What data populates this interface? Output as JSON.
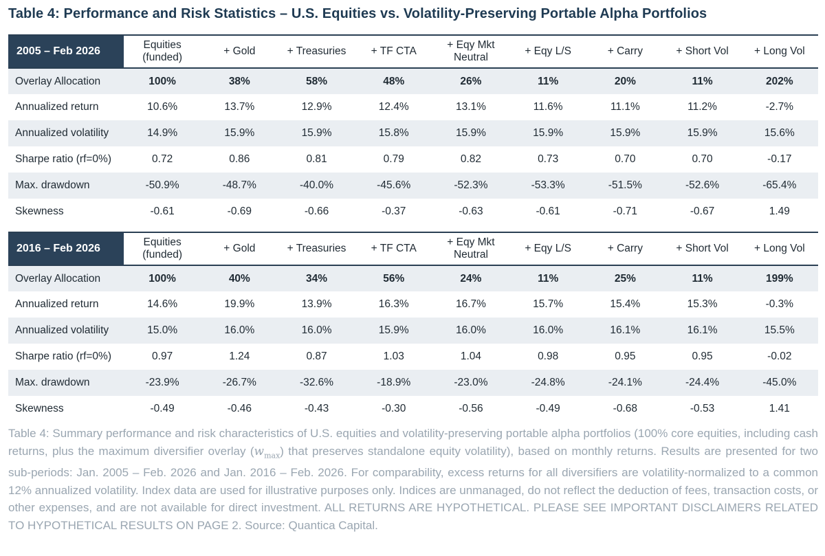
{
  "title": "Table 4: Performance and Risk Statistics – U.S. Equities vs. Volatility-Preserving Portable Alpha Portfolios",
  "columns": [
    {
      "line1": "Equities",
      "line2": "(funded)"
    },
    {
      "line1": "+ Gold",
      "line2": ""
    },
    {
      "line1": "+ Treasuries",
      "line2": ""
    },
    {
      "line1": "+ TF CTA",
      "line2": ""
    },
    {
      "line1": "+ Eqy Mkt",
      "line2": "Neutral"
    },
    {
      "line1": "+ Eqy L/S",
      "line2": ""
    },
    {
      "line1": "+ Carry",
      "line2": ""
    },
    {
      "line1": "+ Short Vol",
      "line2": ""
    },
    {
      "line1": "+ Long Vol",
      "line2": ""
    }
  ],
  "tables": [
    {
      "period": "2005 – Feb 2026",
      "rows": [
        {
          "label": "Overlay Allocation",
          "values": [
            "100%",
            "38%",
            "58%",
            "48%",
            "26%",
            "11%",
            "20%",
            "11%",
            "202%"
          ]
        },
        {
          "label": "Annualized return",
          "values": [
            "10.6%",
            "13.7%",
            "12.9%",
            "12.4%",
            "13.1%",
            "11.6%",
            "11.1%",
            "11.2%",
            "-2.7%"
          ]
        },
        {
          "label": "Annualized volatility",
          "values": [
            "14.9%",
            "15.9%",
            "15.9%",
            "15.8%",
            "15.9%",
            "15.9%",
            "15.9%",
            "15.9%",
            "15.6%"
          ]
        },
        {
          "label": "Sharpe ratio (rf=0%)",
          "values": [
            "0.72",
            "0.86",
            "0.81",
            "0.79",
            "0.82",
            "0.73",
            "0.70",
            "0.70",
            "-0.17"
          ]
        },
        {
          "label": "Max. drawdown",
          "values": [
            "-50.9%",
            "-48.7%",
            "-40.0%",
            "-45.6%",
            "-52.3%",
            "-53.3%",
            "-51.5%",
            "-52.6%",
            "-65.4%"
          ]
        },
        {
          "label": "Skewness",
          "values": [
            "-0.61",
            "-0.69",
            "-0.66",
            "-0.37",
            "-0.63",
            "-0.61",
            "-0.71",
            "-0.67",
            "1.49"
          ]
        }
      ]
    },
    {
      "period": "2016 – Feb 2026",
      "rows": [
        {
          "label": "Overlay Allocation",
          "values": [
            "100%",
            "40%",
            "34%",
            "56%",
            "24%",
            "11%",
            "25%",
            "11%",
            "199%"
          ]
        },
        {
          "label": "Annualized return",
          "values": [
            "14.6%",
            "19.9%",
            "13.9%",
            "16.3%",
            "16.7%",
            "15.7%",
            "15.4%",
            "15.3%",
            "-0.3%"
          ]
        },
        {
          "label": "Annualized volatility",
          "values": [
            "15.0%",
            "16.0%",
            "16.0%",
            "15.9%",
            "16.0%",
            "16.0%",
            "16.1%",
            "16.1%",
            "15.5%"
          ]
        },
        {
          "label": "Sharpe ratio (rf=0%)",
          "values": [
            "0.97",
            "1.24",
            "0.87",
            "1.03",
            "1.04",
            "0.98",
            "0.95",
            "0.95",
            "-0.02"
          ]
        },
        {
          "label": "Max. drawdown",
          "values": [
            "-23.9%",
            "-26.7%",
            "-32.6%",
            "-18.9%",
            "-23.0%",
            "-24.8%",
            "-24.1%",
            "-24.4%",
            "-45.0%"
          ]
        },
        {
          "label": "Skewness",
          "values": [
            "-0.49",
            "-0.46",
            "-0.43",
            "-0.30",
            "-0.56",
            "-0.49",
            "-0.68",
            "-0.53",
            "1.41"
          ]
        }
      ]
    }
  ],
  "caption": {
    "part1": "Table 4: Summary performance and risk characteristics of U.S. equities and volatility-preserving portable alpha portfolios (100% core equities, including cash returns, plus the maximum diversifier overlay (",
    "math_var": "w",
    "math_sub": "max",
    "part2": ") that preserves standalone equity volatility), based on monthly returns. Results are presented for two sub-periods: Jan. 2005 – Feb. 2026 and Jan. 2016 – Feb. 2026. For comparability, excess returns for all diversifiers are volatility-normalized to a common 12% annualized volatility. Index data are used for illustrative purposes only. Indices are unmanaged, do not reflect the deduction of fees, transaction costs, or other expenses, and are not available for direct investment. ALL RETURNS ARE HYPOTHETICAL. PLEASE SEE IMPORTANT DISCLAIMERS RELATED TO HYPOTHETICAL RESULTS ON PAGE 2. Source: Quantica Capital."
  }
}
